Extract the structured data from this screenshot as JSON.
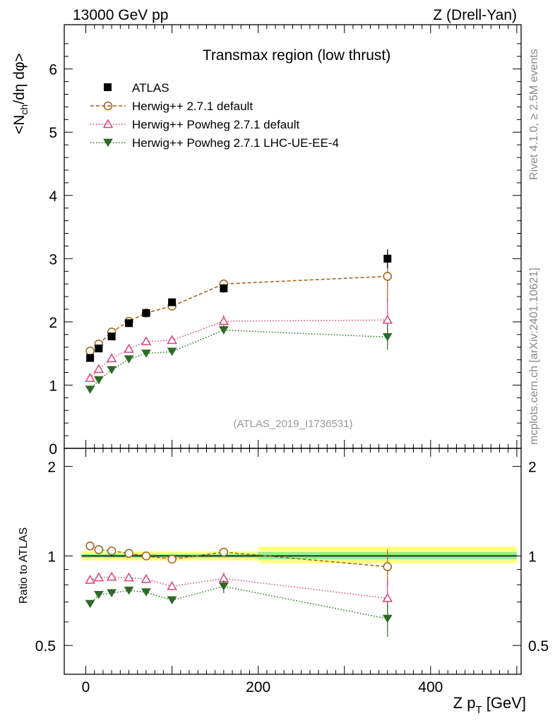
{
  "header": {
    "left": "13000 GeV pp",
    "right": "Z (Drell-Yan)"
  },
  "side_labels": {
    "rivet": "Rivet 4.1.0, ≥ 2.5M events",
    "mcplots": "mcplots.cern.ch [arXiv:2401.10621]"
  },
  "chart_data": {
    "type": "scatter",
    "title": "Transmax region (low thrust)",
    "watermark": "(ATLAS_2019_I1736531)",
    "xlabel": "Z p_T [GeV]",
    "ylabel": "<N_ch/dη dφ>",
    "ratio_ylabel": "Ratio to ATLAS",
    "xlim": [
      -25,
      505
    ],
    "ylim": [
      0,
      6.7
    ],
    "ratio_ylim": [
      0.4,
      2.3
    ],
    "xticks": [
      0,
      200,
      400
    ],
    "yticks": [
      0,
      1,
      2,
      3,
      4,
      5,
      6
    ],
    "ratio_yticks": [
      0.5,
      1,
      2
    ],
    "x": [
      5,
      15,
      30,
      50,
      70,
      100,
      160,
      350
    ],
    "xerr": [
      5,
      5,
      10,
      10,
      10,
      20,
      40,
      150
    ],
    "series": [
      {
        "name": "ATLAS",
        "color": "#000000",
        "marker": "square",
        "values": [
          1.43,
          1.58,
          1.77,
          1.98,
          2.14,
          2.31,
          2.53,
          3.0
        ],
        "errors": [
          0.03,
          0.03,
          0.03,
          0.04,
          0.04,
          0.05,
          0.07,
          0.15
        ],
        "ratio": [
          1,
          1,
          1,
          1,
          1,
          1,
          1,
          1
        ]
      },
      {
        "name": "Herwig++ 2.7.1 default",
        "color": "#a65e10",
        "marker": "circle-open",
        "linestyle": "dashed",
        "values": [
          1.54,
          1.65,
          1.84,
          2.01,
          2.14,
          2.25,
          2.6,
          2.72
        ],
        "errors": [
          0.02,
          0.02,
          0.02,
          0.02,
          0.03,
          0.03,
          0.07,
          0.4
        ],
        "ratio": [
          1.08,
          1.05,
          1.04,
          1.02,
          1.0,
          0.975,
          1.03,
          0.92
        ],
        "ratio_errors": [
          0.01,
          0.01,
          0.01,
          0.01,
          0.01,
          0.015,
          0.03,
          0.13
        ]
      },
      {
        "name": "Herwig++ Powheg 2.7.1 default",
        "color": "#d6457a",
        "marker": "triangle-up-open",
        "linestyle": "dotted",
        "values": [
          1.11,
          1.25,
          1.42,
          1.57,
          1.69,
          1.71,
          2.01,
          2.03
        ],
        "errors": [
          0.02,
          0.02,
          0.02,
          0.02,
          0.03,
          0.03,
          0.1,
          0.35
        ],
        "ratio": [
          0.83,
          0.845,
          0.85,
          0.845,
          0.835,
          0.79,
          0.84,
          0.72
        ],
        "ratio_errors": [
          0.01,
          0.01,
          0.01,
          0.01,
          0.01,
          0.015,
          0.04,
          0.11
        ]
      },
      {
        "name": "Herwig++ Powheg 2.7.1 LHC-UE-EE-4",
        "color": "#2d6a26",
        "marker": "triangle-down-filled",
        "linestyle": "dotted",
        "values": [
          0.93,
          1.08,
          1.24,
          1.41,
          1.5,
          1.53,
          1.87,
          1.76
        ],
        "errors": [
          0.02,
          0.02,
          0.02,
          0.02,
          0.03,
          0.03,
          0.07,
          0.2
        ],
        "ratio": [
          0.69,
          0.74,
          0.75,
          0.765,
          0.755,
          0.71,
          0.79,
          0.615
        ],
        "ratio_errors": [
          0.01,
          0.01,
          0.01,
          0.01,
          0.01,
          0.02,
          0.04,
          0.08
        ]
      }
    ],
    "ratio_bands": [
      {
        "xmin": -5,
        "xmax": 200,
        "yellow": [
          0.965,
          1.035
        ],
        "green": [
          0.985,
          1.015
        ]
      },
      {
        "xmin": 200,
        "xmax": 500,
        "yellow": [
          0.945,
          1.075
        ],
        "green": [
          0.975,
          1.03
        ]
      }
    ]
  }
}
